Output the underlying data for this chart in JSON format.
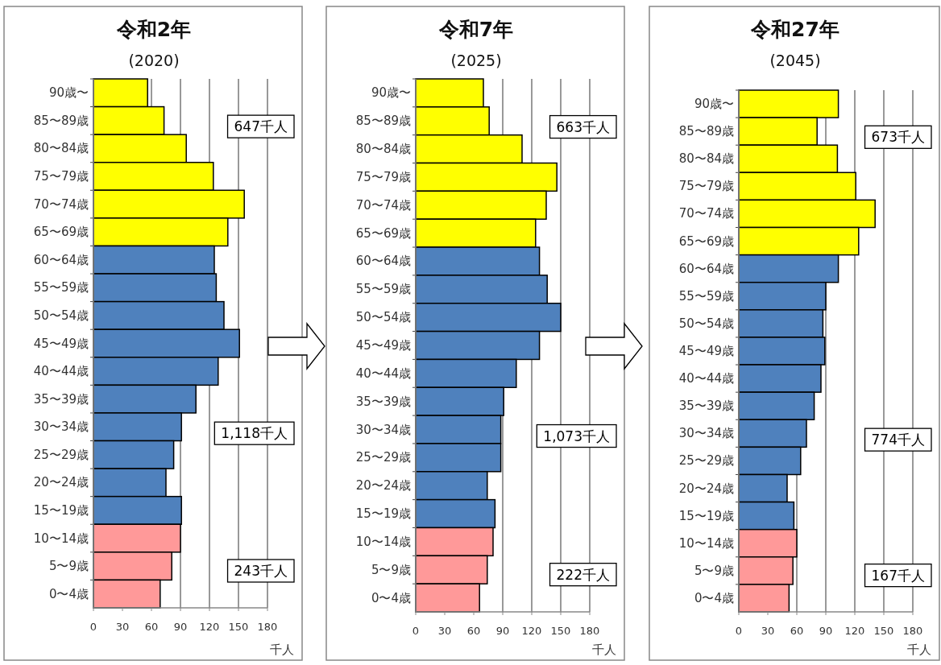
{
  "chart_data": [
    {
      "type": "bar",
      "orientation": "horizontal",
      "title": "令和2年",
      "subtitle": "(2020)",
      "xlabel": "千人",
      "categories": [
        "90歳〜",
        "85〜89歳",
        "80〜84歳",
        "75〜79歳",
        "70〜74歳",
        "65〜69歳",
        "60〜64歳",
        "55〜59歳",
        "50〜54歳",
        "45〜49歳",
        "40〜44歳",
        "35〜39歳",
        "30〜34歳",
        "25〜29歳",
        "20〜24歳",
        "15〜19歳",
        "10〜14歳",
        "5〜9歳",
        "0〜4歳"
      ],
      "values": [
        56,
        73,
        96,
        124,
        156,
        139,
        125,
        127,
        135,
        151,
        129,
        106,
        91,
        83,
        75,
        91,
        90,
        81,
        69
      ],
      "colors": [
        "#ffff00",
        "#ffff00",
        "#ffff00",
        "#ffff00",
        "#ffff00",
        "#ffff00",
        "#4f81bd",
        "#4f81bd",
        "#4f81bd",
        "#4f81bd",
        "#4f81bd",
        "#4f81bd",
        "#4f81bd",
        "#4f81bd",
        "#4f81bd",
        "#4f81bd",
        "#ff9999",
        "#ff9999",
        "#ff9999"
      ],
      "xlim": [
        0,
        180
      ],
      "xticks": [
        0,
        30,
        60,
        90,
        120,
        150,
        180
      ],
      "grid": "x",
      "annotations": [
        "647千人",
        "1,118千人",
        "243千人"
      ]
    },
    {
      "type": "bar",
      "orientation": "horizontal",
      "title": "令和7年",
      "subtitle": "(2025)",
      "xlabel": "千人",
      "categories": [
        "90歳〜",
        "85〜89歳",
        "80〜84歳",
        "75〜79歳",
        "70〜74歳",
        "65〜69歳",
        "60〜64歳",
        "55〜59歳",
        "50〜54歳",
        "45〜49歳",
        "40〜44歳",
        "35〜39歳",
        "30〜34歳",
        "25〜29歳",
        "20〜24歳",
        "15〜19歳",
        "10〜14歳",
        "5〜9歳",
        "0〜4歳"
      ],
      "values": [
        70,
        76,
        110,
        146,
        135,
        124,
        128,
        136,
        150,
        128,
        104,
        91,
        88,
        88,
        74,
        82,
        80,
        74,
        66
      ],
      "colors": [
        "#ffff00",
        "#ffff00",
        "#ffff00",
        "#ffff00",
        "#ffff00",
        "#ffff00",
        "#4f81bd",
        "#4f81bd",
        "#4f81bd",
        "#4f81bd",
        "#4f81bd",
        "#4f81bd",
        "#4f81bd",
        "#4f81bd",
        "#4f81bd",
        "#4f81bd",
        "#ff9999",
        "#ff9999",
        "#ff9999"
      ],
      "xlim": [
        0,
        180
      ],
      "xticks": [
        0,
        30,
        60,
        90,
        120,
        150,
        180
      ],
      "grid": "x",
      "annotations": [
        "663千人",
        "1,073千人",
        "222千人"
      ]
    },
    {
      "type": "bar",
      "orientation": "horizontal",
      "title": "令和27年",
      "subtitle": "(2045)",
      "xlabel": "千人",
      "categories": [
        "90歳〜",
        "85〜89歳",
        "80〜84歳",
        "75〜79歳",
        "70〜74歳",
        "65〜69歳",
        "60〜64歳",
        "55〜59歳",
        "50〜54歳",
        "45〜49歳",
        "40〜44歳",
        "35〜39歳",
        "30〜34歳",
        "25〜29歳",
        "20〜24歳",
        "15〜19歳",
        "10〜14歳",
        "5〜9歳",
        "0〜4歳"
      ],
      "values": [
        103,
        81,
        102,
        121,
        141,
        124,
        103,
        90,
        87,
        89,
        85,
        78,
        70,
        64,
        50,
        57,
        60,
        56,
        52
      ],
      "colors": [
        "#ffff00",
        "#ffff00",
        "#ffff00",
        "#ffff00",
        "#ffff00",
        "#ffff00",
        "#4f81bd",
        "#4f81bd",
        "#4f81bd",
        "#4f81bd",
        "#4f81bd",
        "#4f81bd",
        "#4f81bd",
        "#4f81bd",
        "#4f81bd",
        "#4f81bd",
        "#ff9999",
        "#ff9999",
        "#ff9999"
      ],
      "xlim": [
        0,
        180
      ],
      "xticks": [
        0,
        30,
        60,
        90,
        120,
        150,
        180
      ],
      "grid": "x",
      "annotations": [
        "673千人",
        "774千人",
        "167千人"
      ]
    }
  ]
}
